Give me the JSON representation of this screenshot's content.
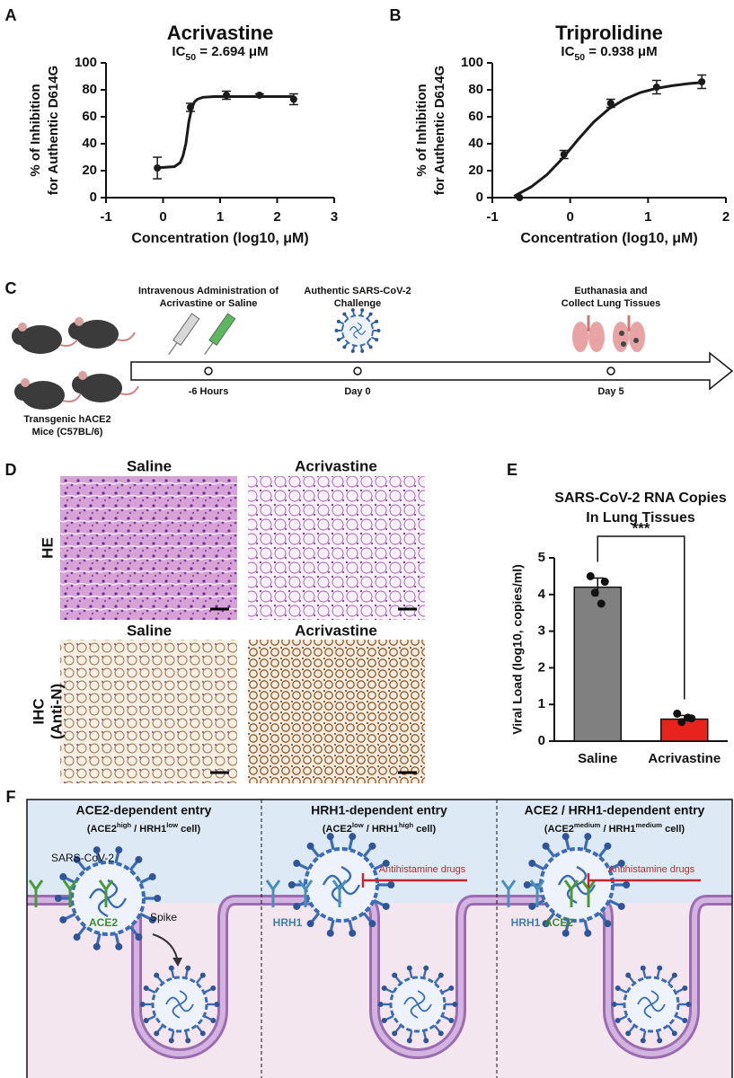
{
  "panel_labels": [
    "A",
    "B",
    "C",
    "D",
    "E",
    "F"
  ],
  "chart_data": [
    {
      "type": "scatter",
      "title": "Acrivastine",
      "subtitle": [
        "IC",
        "50",
        " = 2.694 μM"
      ],
      "x_label": "Concentration (log10, μM)",
      "y_label": [
        "% of Inhibition",
        "for Authentic D614G"
      ],
      "x": [
        -0.1,
        0.48,
        1.11,
        1.69,
        2.29
      ],
      "values": [
        22,
        67,
        76,
        76,
        73
      ],
      "errors": [
        8,
        3,
        3,
        1,
        4
      ],
      "color": "#1a1a1a",
      "fit": {
        "x": [
          -0.15,
          0.2,
          0.3,
          0.35,
          0.4,
          0.45,
          0.5,
          0.55,
          0.6,
          0.7,
          0.9,
          1.2,
          2.3
        ],
        "values": [
          22,
          23,
          26,
          31,
          40,
          56,
          66,
          71,
          73,
          74.5,
          75,
          75,
          75
        ]
      },
      "xlim": [
        -1,
        3
      ],
      "xticks": [
        -1,
        0,
        1,
        2,
        3
      ],
      "ylim": [
        0,
        100
      ],
      "yticks": [
        0,
        20,
        40,
        60,
        80,
        100
      ]
    },
    {
      "type": "scatter",
      "title": "Triprolidine",
      "subtitle": [
        "IC",
        "50",
        " = 0.938 μM"
      ],
      "x_label": "Concentration (log10, μM)",
      "y_label": [
        "% of Inhibition",
        "for Authentic D614G"
      ],
      "x": [
        -0.65,
        -0.08,
        0.52,
        1.11,
        1.69
      ],
      "values": [
        0,
        32,
        70,
        82,
        86
      ],
      "errors": [
        0,
        3,
        3,
        5,
        5
      ],
      "color": "#1a1a1a",
      "fit": {
        "x": [
          -0.72,
          -0.5,
          -0.3,
          -0.1,
          0.1,
          0.3,
          0.5,
          0.7,
          0.9,
          1.1,
          1.3,
          1.5,
          1.7
        ],
        "values": [
          1,
          8,
          17,
          29,
          43,
          56,
          66,
          73,
          78,
          81,
          83,
          84.5,
          85.5
        ]
      },
      "xlim": [
        -1,
        2
      ],
      "xticks": [
        -1,
        0,
        1,
        2
      ],
      "ylim": [
        0,
        100
      ],
      "yticks": [
        0,
        20,
        40,
        60,
        80,
        100
      ]
    },
    {
      "type": "bar",
      "title": [
        "SARS-CoV-2 RNA Copies",
        "In Lung Tissues"
      ],
      "y_label": "Viral Load (log10, copies/ml)",
      "categories": [
        "Saline",
        "Acrivastine"
      ],
      "values": [
        4.2,
        0.6
      ],
      "errors": [
        0.25,
        0.1
      ],
      "colors": [
        "#808080",
        "#e8231e"
      ],
      "points": [
        [
          4.5,
          4.35,
          4.05,
          3.75
        ],
        [
          0.75,
          0.62,
          0.52,
          0.64
        ]
      ],
      "annotation": "***",
      "ylim": [
        0,
        5
      ],
      "yticks": [
        0,
        1,
        2,
        3,
        4,
        5
      ]
    }
  ],
  "timeline": {
    "subjects": [
      "Transgenic hACE2",
      "Mice (C57BL/6)"
    ],
    "events": [
      {
        "label": [
          "Intravenous Administration of",
          "Acrivastine or Saline"
        ],
        "time": "-6 Hours"
      },
      {
        "label": [
          "Authentic SARS-CoV-2",
          "Challenge"
        ],
        "time": "Day 0"
      },
      {
        "label": [
          "Euthanasia and",
          "Collect Lung Tissues"
        ],
        "time": "Day 5"
      }
    ]
  },
  "histology": {
    "columns": [
      "Saline",
      "Acrivastine"
    ],
    "rows": [
      [
        "HE"
      ],
      [
        "IHC",
        "(Anti-N)"
      ]
    ]
  },
  "mechanism": {
    "panels": [
      {
        "title": "ACE2-dependent entry",
        "subtitle": [
          "(ACE2",
          "high",
          " / HRH1",
          "low",
          " cell)"
        ]
      },
      {
        "title": "HRH1-dependent entry",
        "subtitle": [
          "(ACE2",
          "low",
          " / HRH1",
          "high",
          " cell)"
        ]
      },
      {
        "title": "ACE2 / HRH1-dependent entry",
        "subtitle": [
          "(ACE2",
          "medium",
          " / HRH1",
          "medium",
          " cell)"
        ]
      }
    ],
    "labels": {
      "virus": "SARS-CoV-2",
      "spike": "Spike",
      "ace2": "ACE2",
      "hrh1": "HRH1",
      "drug": "Antihistamine drugs"
    }
  }
}
